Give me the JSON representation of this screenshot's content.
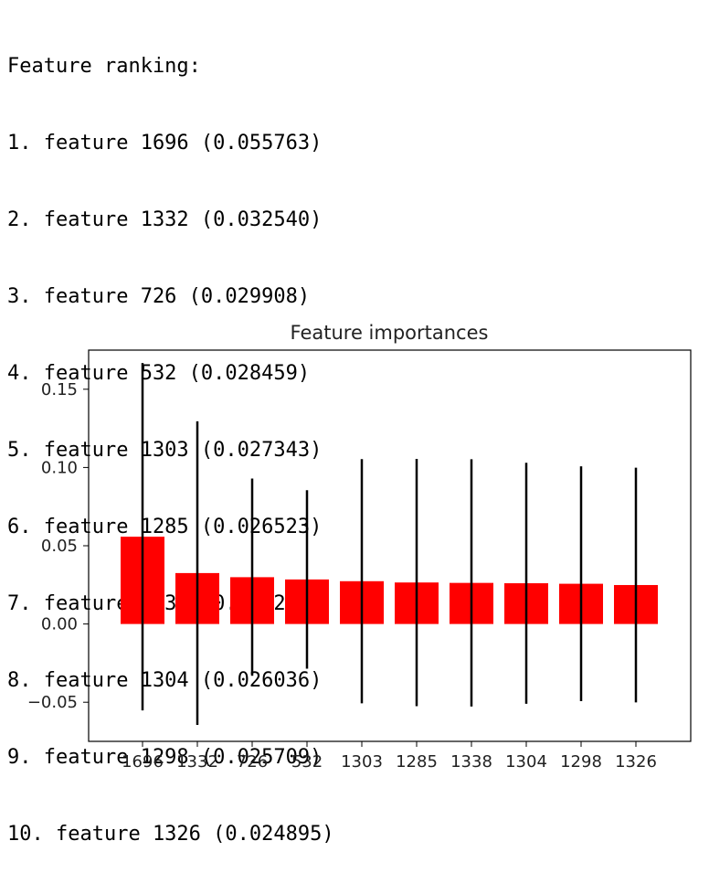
{
  "console": {
    "header": "Feature ranking:",
    "lines": [
      "1. feature 1696 (0.055763)",
      "2. feature 1332 (0.032540)",
      "3. feature 726 (0.029908)",
      "4. feature 532 (0.028459)",
      "5. feature 1303 (0.027343)",
      "6. feature 1285 (0.026523)",
      "7. feature 1338 (0.026258)",
      "8. feature 1304 (0.026036)",
      "9. feature 1298 (0.025709)",
      "10. feature 1326 (0.024895)"
    ]
  },
  "chart_data": {
    "type": "bar",
    "title": "Feature importances",
    "xlabel": "",
    "ylabel": "",
    "categories": [
      "1696",
      "1332",
      "726",
      "532",
      "1303",
      "1285",
      "1338",
      "1304",
      "1298",
      "1326"
    ],
    "values": [
      0.055763,
      0.03254,
      0.029908,
      0.028459,
      0.027343,
      0.026523,
      0.026258,
      0.026036,
      0.025709,
      0.024895
    ],
    "errors": [
      0.111,
      0.097,
      0.063,
      0.057,
      0.078,
      0.079,
      0.079,
      0.077,
      0.075,
      0.075
    ],
    "ylim": [
      -0.075,
      0.175
    ],
    "yticks": [
      -0.05,
      0.0,
      0.05,
      0.1,
      0.15
    ],
    "ytick_labels": [
      "−0.05",
      "0.00",
      "0.05",
      "0.10",
      "0.15"
    ],
    "bar_color": "#ff0000",
    "error_color": "#000000",
    "grid": false,
    "legend": "none"
  }
}
